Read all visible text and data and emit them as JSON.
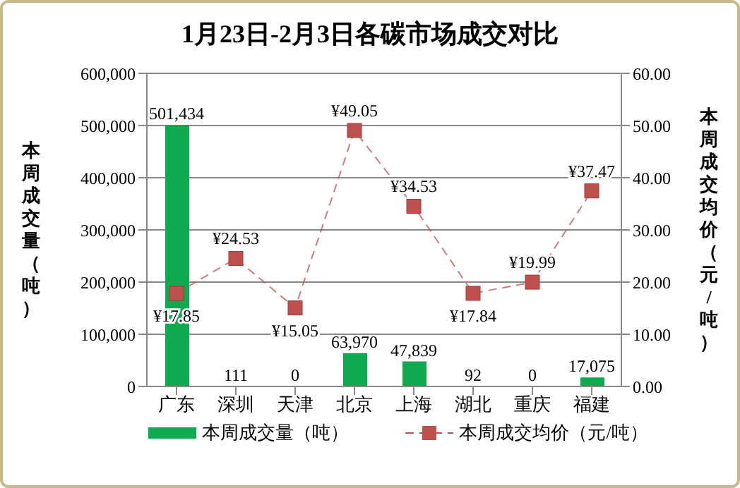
{
  "chart_data": {
    "type": "bar",
    "title": "1月23日-2月3日各碳市场成交对比",
    "categories": [
      "广东",
      "深圳",
      "天津",
      "北京",
      "上海",
      "湖北",
      "重庆",
      "福建"
    ],
    "series": [
      {
        "name": "本周成交量（吨）",
        "color": "#0fa94f",
        "values": [
          501434,
          111,
          0,
          63970,
          47839,
          92,
          0,
          17075
        ],
        "value_labels": [
          "501,434",
          "111",
          "0",
          "63,970",
          "47,839",
          "92",
          "0",
          "17,075"
        ]
      },
      {
        "name": "本周成交均价（元/吨）",
        "type": "line",
        "axis": "y2",
        "color": "#c0504d",
        "marker": "square",
        "line_style": "dashed",
        "values": [
          17.85,
          24.53,
          15.05,
          49.05,
          34.53,
          17.84,
          19.99,
          37.47
        ],
        "value_labels": [
          "¥17.85",
          "¥24.53",
          "¥15.05",
          "¥49.05",
          "¥34.53",
          "¥17.84",
          "¥19.99",
          "¥37.47"
        ]
      }
    ],
    "ylabel": "本周成交量（吨）",
    "y2label": "本周成交均价（元/吨）",
    "ylim": [
      0,
      600000
    ],
    "yticks": [
      {
        "value": 0,
        "label": "0"
      },
      {
        "value": 100000,
        "label": "100,000"
      },
      {
        "value": 200000,
        "label": "200,000"
      },
      {
        "value": 300000,
        "label": "300,000"
      },
      {
        "value": 400000,
        "label": "400,000"
      },
      {
        "value": 500000,
        "label": "500,000"
      },
      {
        "value": 600000,
        "label": "600,000"
      }
    ],
    "y2lim": [
      0,
      60
    ],
    "y2ticks": [
      {
        "value": 0,
        "label": "0.00"
      },
      {
        "value": 10,
        "label": "10.00"
      },
      {
        "value": 20,
        "label": "20.00"
      },
      {
        "value": 30,
        "label": "30.00"
      },
      {
        "value": 40,
        "label": "40.00"
      },
      {
        "value": 50,
        "label": "50.00"
      },
      {
        "value": 60,
        "label": "60.00"
      }
    ],
    "grid": "y",
    "legend": "bottom"
  }
}
